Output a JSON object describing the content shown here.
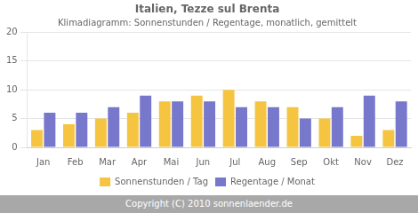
{
  "chart_data": {
    "type": "bar",
    "title": "Italien, Tezze sul Brenta",
    "subtitle": "Klimadiagramm: Sonnenstunden / Regentage, monatlich, gemittelt",
    "annotations": [
      "Copyright (C) 2010 sonnenlaender.de"
    ],
    "categories": [
      "Jan",
      "Feb",
      "Mar",
      "Apr",
      "Mai",
      "Jun",
      "Jul",
      "Aug",
      "Sep",
      "Okt",
      "Nov",
      "Dez"
    ],
    "series": [
      {
        "name": "Sonnenstunden / Tag",
        "color": "#F5C542",
        "values": [
          3,
          4,
          5,
          6,
          8,
          9,
          10,
          8,
          7,
          5,
          2,
          3
        ]
      },
      {
        "name": "Regentage / Monat",
        "color": "#7777CC",
        "values": [
          6,
          6,
          7,
          9,
          8,
          8,
          7,
          7,
          5,
          7,
          9,
          8
        ]
      }
    ],
    "ylim": [
      0,
      20
    ],
    "yticks": [
      0,
      5,
      10,
      15,
      20
    ],
    "grid": true,
    "legend": "bottom"
  }
}
